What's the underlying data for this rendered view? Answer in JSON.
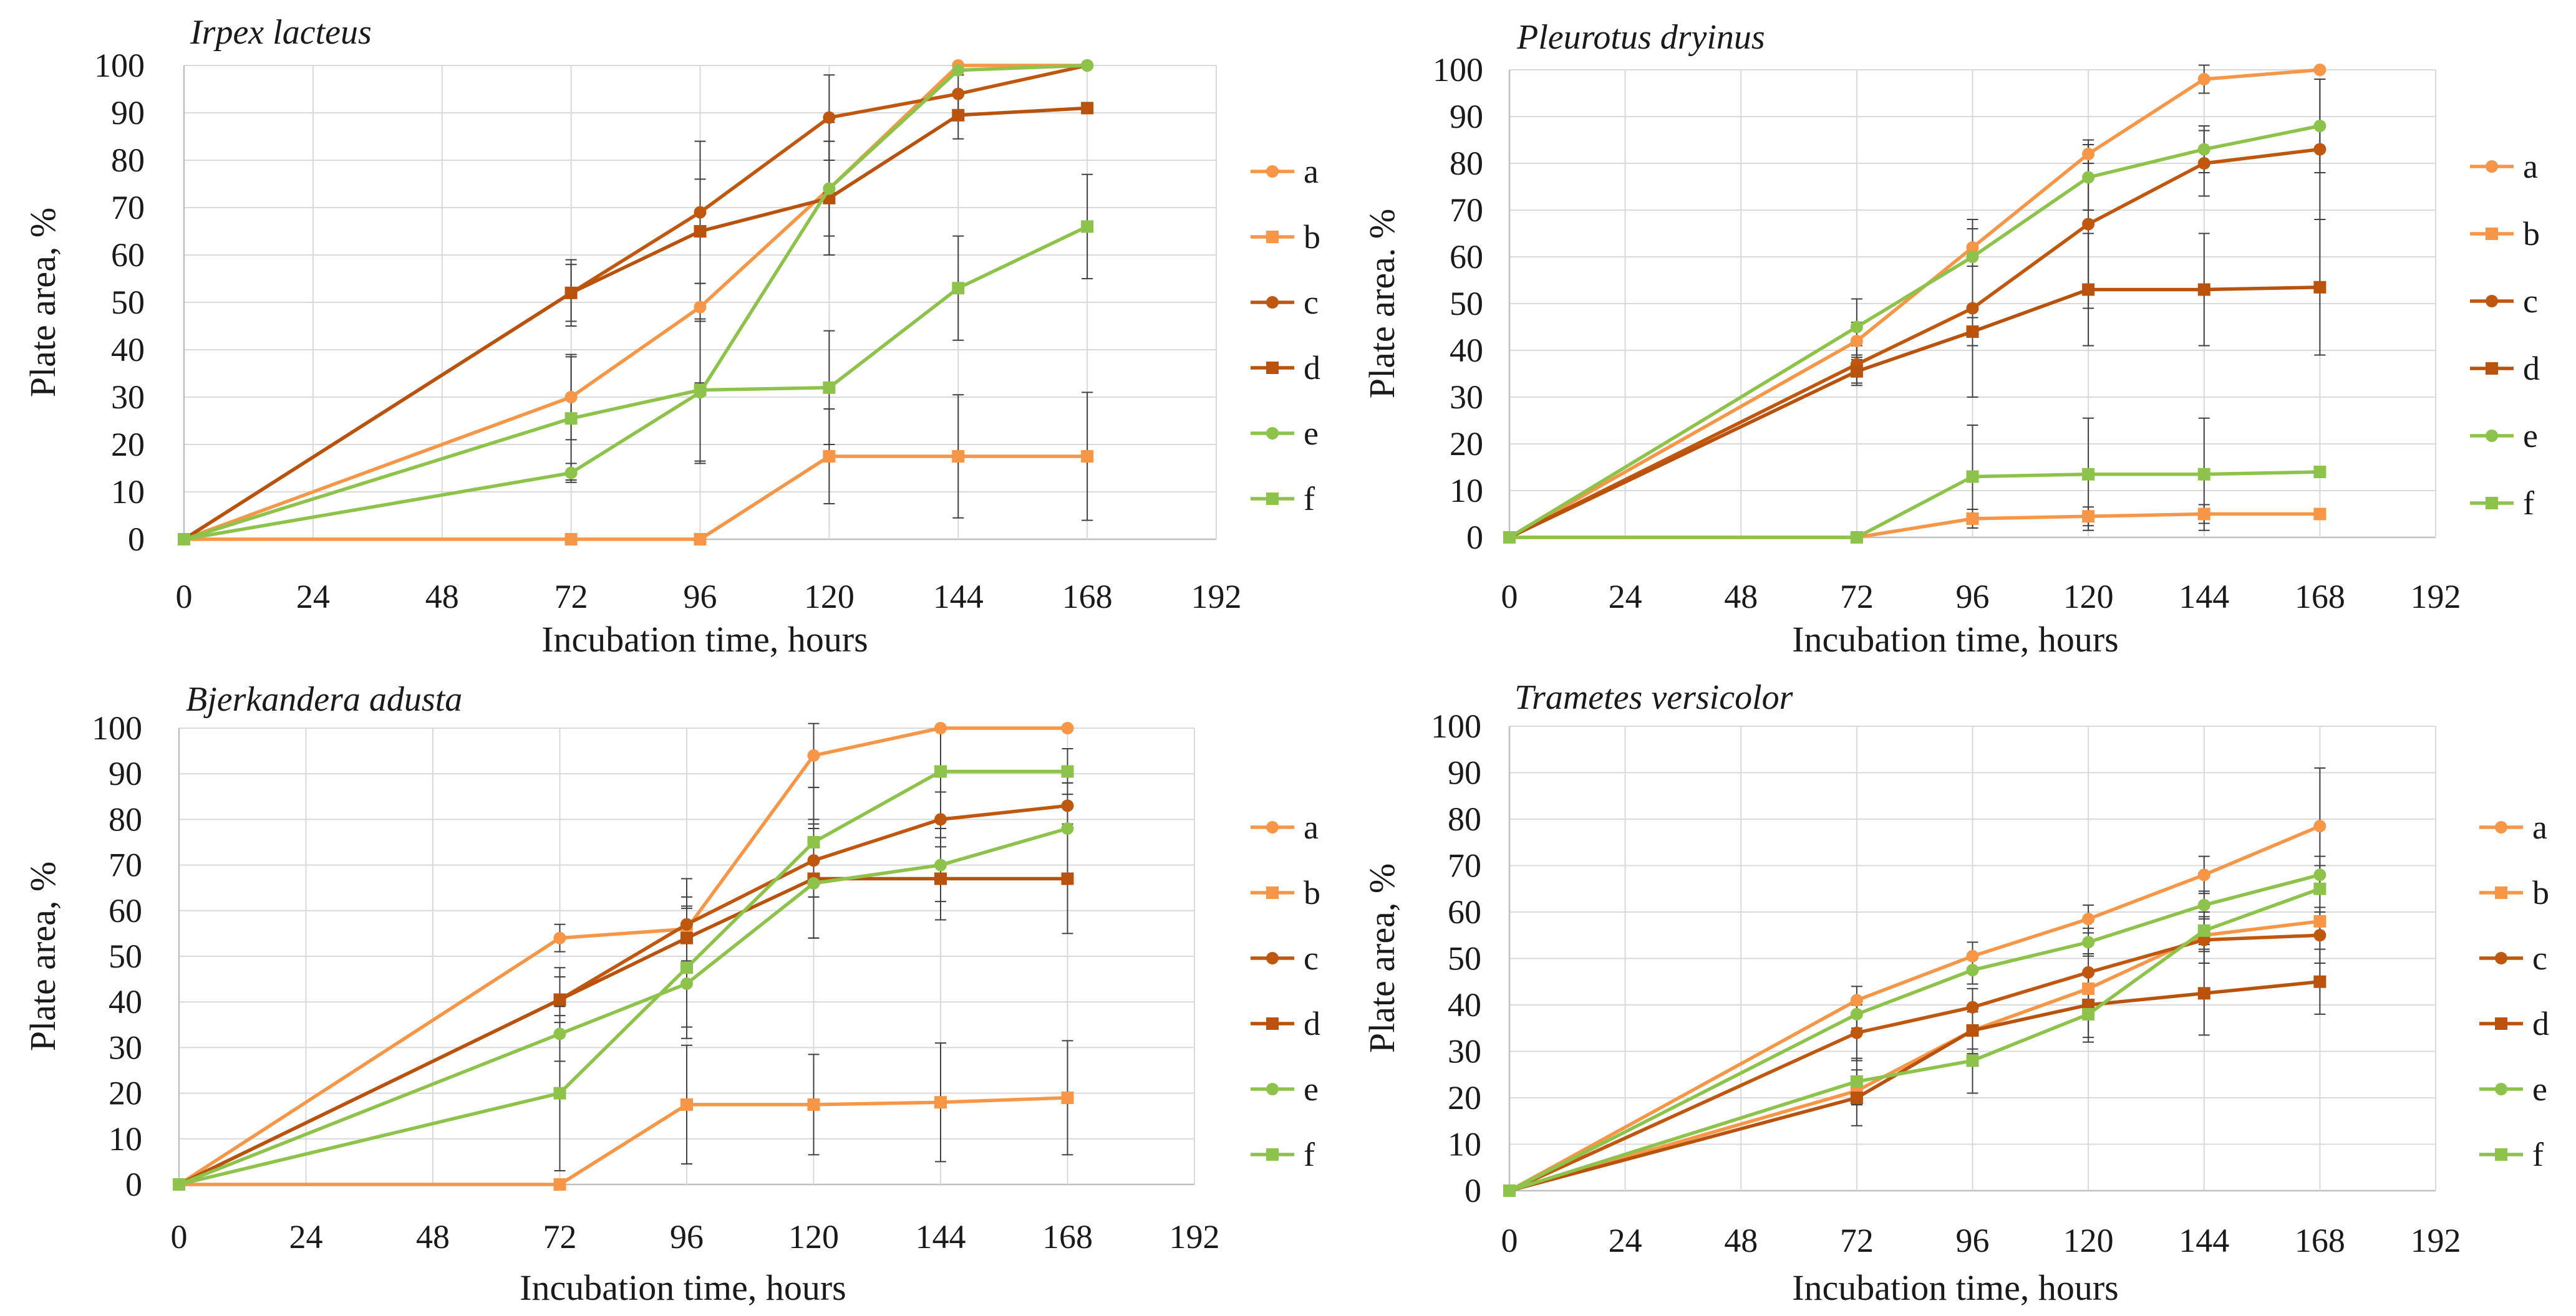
{
  "series_colors": {
    "a": "#F79646",
    "b": "#F79646",
    "c": "#C0570F",
    "d": "#B8520C",
    "e": "#8DC34A",
    "f": "#8DC34A"
  },
  "series_markers": {
    "a": "circle",
    "b": "square",
    "c": "circle",
    "d": "square",
    "e": "circle",
    "f": "square"
  },
  "chart_data": [
    {
      "type": "line",
      "title": "Irpex lacteus",
      "xlabel": "Incubation time, hours",
      "ylabel": "Plate area, %",
      "xlim": [
        0,
        192
      ],
      "ylim": [
        0,
        100
      ],
      "xticks": [
        "0",
        "24",
        "48",
        "72",
        "96",
        "120",
        "144",
        "168",
        "192"
      ],
      "yticks": [
        "0",
        "10",
        "20",
        "30",
        "40",
        "50",
        "60",
        "70",
        "80",
        "90",
        "100"
      ],
      "legend_position": "right",
      "series": [
        {
          "name": "a",
          "x": [
            0,
            72,
            96,
            120,
            144,
            168
          ],
          "values": [
            0,
            30,
            49,
            74,
            100,
            100
          ],
          "errors": [
            0,
            9,
            16,
            10,
            0,
            0
          ]
        },
        {
          "name": "b",
          "x": [
            0,
            72,
            96,
            120,
            144,
            168
          ],
          "values": [
            0,
            0,
            0,
            17.5,
            17.5,
            17.5
          ],
          "errors": [
            0,
            0,
            0,
            10,
            13,
            13.5
          ]
        },
        {
          "name": "c",
          "x": [
            0,
            72,
            96,
            120,
            144,
            168
          ],
          "values": [
            0,
            52,
            69,
            89,
            94,
            100
          ],
          "errors": [
            0,
            7,
            15,
            9,
            4,
            0
          ]
        },
        {
          "name": "d",
          "x": [
            0,
            72,
            96,
            120,
            144,
            168
          ],
          "values": [
            0,
            52,
            65,
            72,
            89.5,
            91
          ],
          "errors": [
            0,
            6,
            11,
            12,
            5,
            1
          ]
        },
        {
          "name": "e",
          "x": [
            0,
            72,
            96,
            120,
            144,
            168
          ],
          "values": [
            0,
            14,
            31,
            74,
            99,
            100
          ],
          "errors": [
            0,
            2,
            15,
            14,
            1,
            0
          ]
        },
        {
          "name": "f",
          "x": [
            0,
            72,
            96,
            120,
            144,
            168
          ],
          "values": [
            0,
            25.5,
            31.5,
            32,
            53,
            66
          ],
          "errors": [
            0,
            13,
            15,
            12,
            11,
            11
          ]
        }
      ]
    },
    {
      "type": "line",
      "title": "Pleurotus dryinus",
      "xlabel": "Incubation time, hours",
      "ylabel": "Plate area. %",
      "xlim": [
        0,
        192
      ],
      "ylim": [
        0,
        100
      ],
      "xticks": [
        "0",
        "24",
        "48",
        "72",
        "96",
        "120",
        "144",
        "168",
        "192"
      ],
      "yticks": [
        "0",
        "10",
        "20",
        "30",
        "40",
        "50",
        "60",
        "70",
        "80",
        "90",
        "100"
      ],
      "legend_position": "right",
      "series": [
        {
          "name": "a",
          "x": [
            0,
            72,
            96,
            120,
            144,
            168
          ],
          "values": [
            0,
            42,
            62,
            82,
            98,
            100
          ],
          "errors": [
            0,
            4,
            4,
            2,
            3,
            0
          ]
        },
        {
          "name": "b",
          "x": [
            0,
            72,
            96,
            120,
            144,
            168
          ],
          "values": [
            0,
            0,
            4,
            4.5,
            5,
            5
          ],
          "errors": [
            0,
            0,
            2,
            2,
            2,
            0
          ]
        },
        {
          "name": "c",
          "x": [
            0,
            72,
            96,
            120,
            144,
            168
          ],
          "values": [
            0,
            37,
            49,
            67,
            80,
            83
          ],
          "errors": [
            0,
            4,
            19,
            18,
            7,
            15
          ]
        },
        {
          "name": "d",
          "x": [
            0,
            72,
            96,
            120,
            144,
            168
          ],
          "values": [
            0,
            35.5,
            44,
            53,
            53,
            53.5
          ],
          "errors": [
            0,
            3,
            3,
            12,
            12,
            14.5
          ]
        },
        {
          "name": "e",
          "x": [
            0,
            72,
            96,
            120,
            144,
            168
          ],
          "values": [
            0,
            45,
            60,
            77,
            83,
            88
          ],
          "errors": [
            0,
            6,
            2,
            7,
            5,
            10
          ]
        },
        {
          "name": "f",
          "x": [
            0,
            72,
            96,
            120,
            144,
            168
          ],
          "values": [
            0,
            0,
            13,
            13.5,
            13.5,
            14
          ],
          "errors": [
            0,
            0,
            11,
            12,
            12,
            0
          ]
        }
      ]
    },
    {
      "type": "line",
      "title": "Bjerkandera adusta",
      "xlabel": "Incubation time, hours",
      "ylabel": "Plate area, %",
      "xlim": [
        0,
        192
      ],
      "ylim": [
        0,
        100
      ],
      "xticks": [
        "0",
        "24",
        "48",
        "72",
        "96",
        "120",
        "144",
        "168",
        "192"
      ],
      "yticks": [
        "0",
        "10",
        "20",
        "30",
        "40",
        "50",
        "60",
        "70",
        "80",
        "90",
        "100"
      ],
      "legend_position": "right",
      "series": [
        {
          "name": "a",
          "x": [
            0,
            72,
            96,
            120,
            144,
            168
          ],
          "values": [
            0,
            54,
            56,
            94,
            100,
            100
          ],
          "errors": [
            0,
            3,
            7,
            7,
            0,
            0
          ]
        },
        {
          "name": "b",
          "x": [
            0,
            72,
            96,
            120,
            144,
            168
          ],
          "values": [
            0,
            0,
            17.5,
            17.5,
            18,
            19
          ],
          "errors": [
            0,
            0,
            13,
            11,
            13,
            12.5
          ]
        },
        {
          "name": "c",
          "x": [
            0,
            72,
            96,
            120,
            144,
            168
          ],
          "values": [
            0,
            40.5,
            57,
            71,
            80,
            83
          ],
          "errors": [
            0,
            7,
            10,
            8,
            6,
            5
          ]
        },
        {
          "name": "d",
          "x": [
            0,
            72,
            96,
            120,
            144,
            168
          ],
          "values": [
            0,
            40.5,
            54,
            67,
            67,
            67
          ],
          "errors": [
            0,
            5,
            7,
            13,
            9,
            12
          ]
        },
        {
          "name": "e",
          "x": [
            0,
            72,
            96,
            120,
            144,
            168
          ],
          "values": [
            0,
            33,
            44,
            66,
            70,
            78
          ],
          "errors": [
            0,
            6,
            12,
            12,
            8,
            10
          ]
        },
        {
          "name": "f",
          "x": [
            0,
            72,
            96,
            120,
            144,
            168
          ],
          "values": [
            0,
            20,
            47.5,
            75,
            90.5,
            90.5
          ],
          "errors": [
            0,
            17,
            13,
            12,
            10,
            5
          ]
        }
      ]
    },
    {
      "type": "line",
      "title": "Trametes versicolor",
      "xlabel": "Incubation time, hours",
      "ylabel": "Plate area, %",
      "xlim": [
        0,
        192
      ],
      "ylim": [
        0,
        100
      ],
      "xticks": [
        "0",
        "24",
        "48",
        "72",
        "96",
        "120",
        "144",
        "168",
        "192"
      ],
      "yticks": [
        "0",
        "10",
        "20",
        "30",
        "40",
        "50",
        "60",
        "70",
        "80",
        "90",
        "100"
      ],
      "legend_position": "right",
      "series": [
        {
          "name": "a",
          "x": [
            0,
            72,
            96,
            120,
            144,
            168
          ],
          "values": [
            0,
            41,
            50.5,
            58.5,
            68,
            78.5
          ],
          "errors": [
            0,
            3,
            3,
            3,
            4,
            12.5
          ]
        },
        {
          "name": "b",
          "x": [
            0,
            72,
            96,
            120,
            144,
            168
          ],
          "values": [
            0,
            21.5,
            34.5,
            43.5,
            55,
            58
          ],
          "errors": [
            0,
            3,
            4,
            3,
            2,
            3
          ]
        },
        {
          "name": "c",
          "x": [
            0,
            72,
            96,
            120,
            144,
            168
          ],
          "values": [
            0,
            34,
            39.5,
            47,
            54,
            55
          ],
          "errors": [
            0,
            6,
            4,
            4,
            5,
            6
          ]
        },
        {
          "name": "d",
          "x": [
            0,
            72,
            96,
            120,
            144,
            168
          ],
          "values": [
            0,
            20,
            34.5,
            40,
            42.5,
            45
          ],
          "errors": [
            0,
            6,
            5,
            7,
            9,
            7
          ]
        },
        {
          "name": "e",
          "x": [
            0,
            72,
            96,
            120,
            144,
            168
          ],
          "values": [
            0,
            38,
            47.5,
            53.5,
            61.5,
            68
          ],
          "errors": [
            0,
            3,
            3,
            3,
            3,
            4
          ]
        },
        {
          "name": "f",
          "x": [
            0,
            72,
            96,
            120,
            144,
            168
          ],
          "values": [
            0,
            23.5,
            28,
            38,
            56,
            65
          ],
          "errors": [
            0,
            5,
            7,
            6,
            4,
            5
          ]
        }
      ]
    }
  ]
}
